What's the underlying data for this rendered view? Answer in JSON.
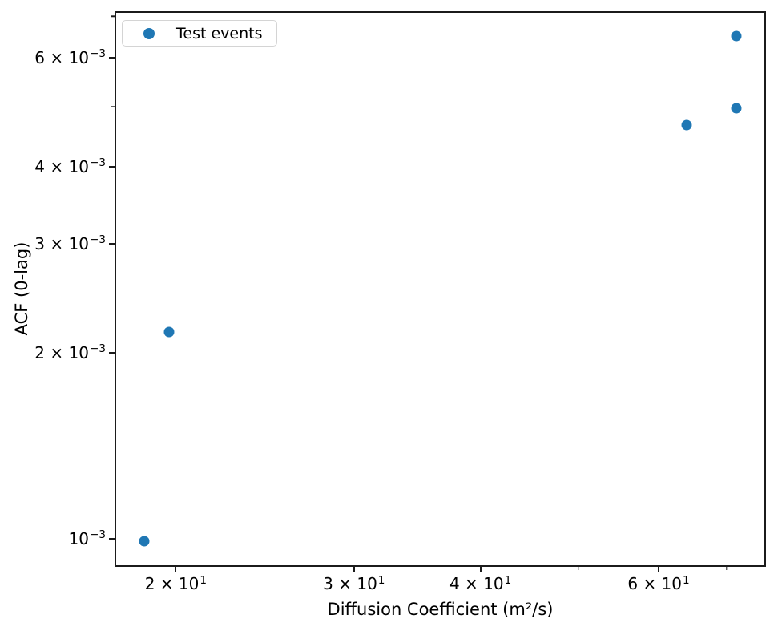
{
  "figure": {
    "background": "#ffffff",
    "spine_color": "#1b1b1b"
  },
  "chart_data": {
    "type": "scatter",
    "title": "",
    "xlabel": "Diffusion Coefficient (m²/s)",
    "ylabel": "ACF (0-lag)",
    "xscale": "log",
    "yscale": "log",
    "xlim": [
      17.4,
      76.6
    ],
    "ylim": [
      0.0009,
      0.00713
    ],
    "grid": false,
    "legend": {
      "label": "Test events",
      "position": "upper left",
      "marker_color": "#1f77b4"
    },
    "series": [
      {
        "name": "Test events",
        "color": "#1f77b4",
        "marker": "circle",
        "marker_size_px": 13,
        "points": [
          {
            "x": 18.6,
            "y": 0.00099
          },
          {
            "x": 19.7,
            "y": 0.00216
          },
          {
            "x": 63.9,
            "y": 0.00466
          },
          {
            "x": 71.6,
            "y": 0.00497
          },
          {
            "x": 71.6,
            "y": 0.00649
          }
        ]
      }
    ],
    "x_ticks": [
      {
        "value": 20,
        "label": "2 × 10¹",
        "mantissa": "2 × 10",
        "exponent": "1"
      },
      {
        "value": 30,
        "label": "3 × 10¹",
        "mantissa": "3 × 10",
        "exponent": "1"
      },
      {
        "value": 40,
        "label": "4 × 10¹",
        "mantissa": "4 × 10",
        "exponent": "1"
      },
      {
        "value": 60,
        "label": "6 × 10¹",
        "mantissa": "6 × 10",
        "exponent": "1"
      }
    ],
    "x_minor_ticks": [
      50,
      70
    ],
    "y_ticks": [
      {
        "value": 0.006,
        "label": "6 × 10⁻³",
        "mantissa": "6 × 10",
        "exponent": "−3"
      },
      {
        "value": 0.004,
        "label": "4 × 10⁻³",
        "mantissa": "4 × 10",
        "exponent": "−3"
      },
      {
        "value": 0.003,
        "label": "3 × 10⁻³",
        "mantissa": "3 × 10",
        "exponent": "−3"
      },
      {
        "value": 0.002,
        "label": "2 × 10⁻³",
        "mantissa": "2 × 10",
        "exponent": "−3"
      },
      {
        "value": 0.001,
        "label": "10⁻³",
        "mantissa": "10",
        "exponent": "−3"
      }
    ],
    "y_minor_ticks": [
      0.007,
      0.005
    ]
  }
}
